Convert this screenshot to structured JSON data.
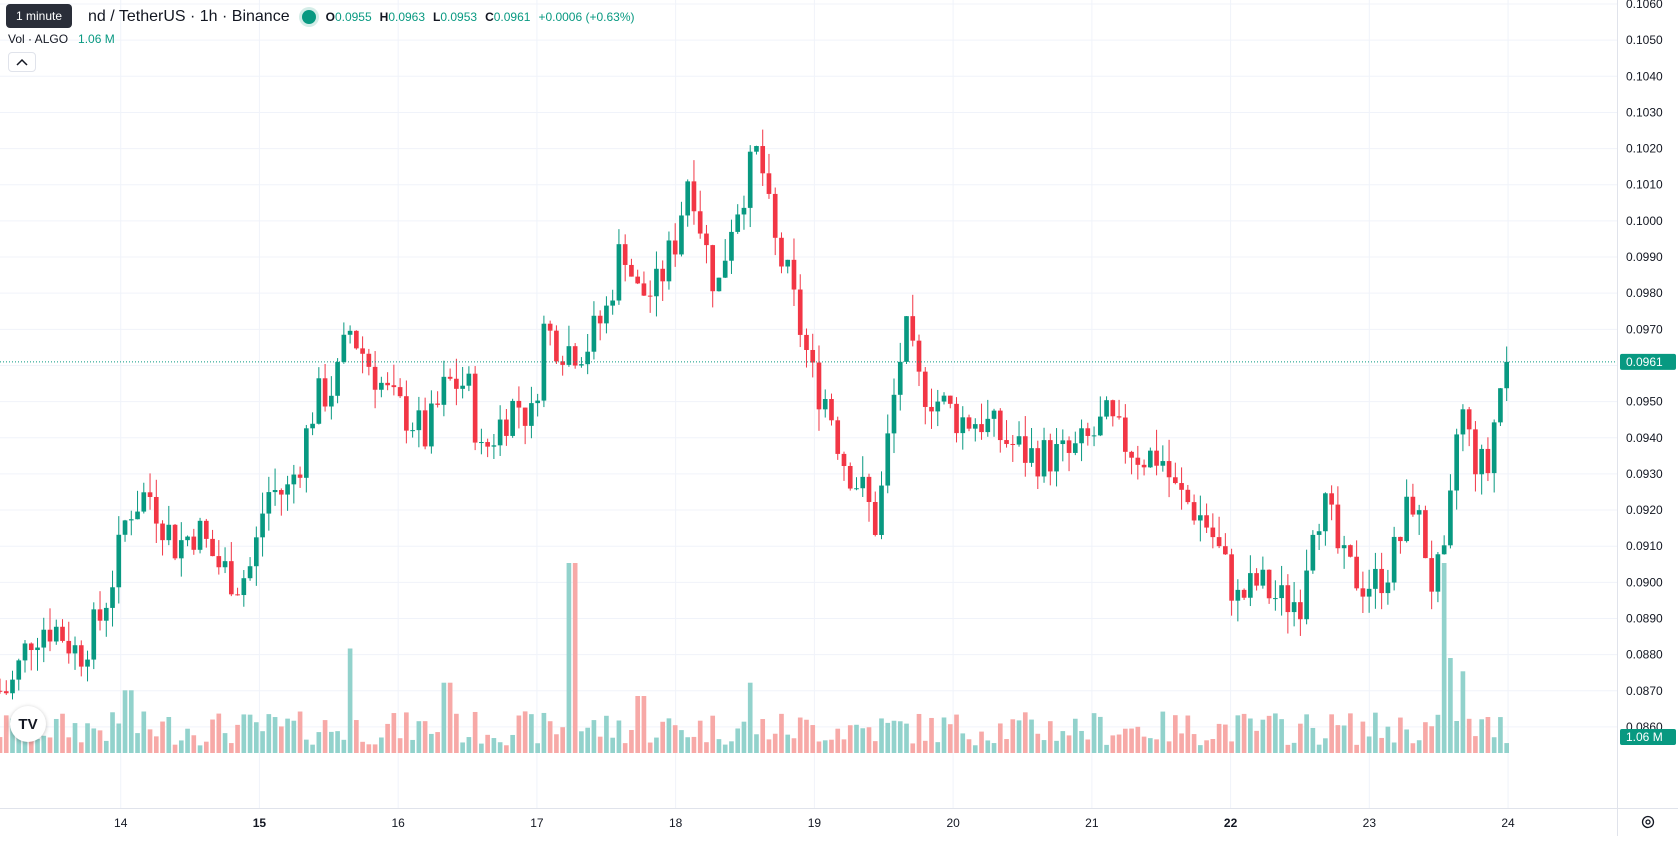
{
  "legend": {
    "interval_tooltip": "1 minute",
    "title": "nd / TetherUS · 1h · Binance",
    "open_label": "O",
    "open": "0.0955",
    "high_label": "H",
    "high": "0.0963",
    "low_label": "L",
    "low": "0.0953",
    "close_label": "C",
    "close": "0.0961",
    "change": "+0.0006 (+0.63%)"
  },
  "volume_legend": {
    "label": "Vol · ALGO",
    "value": "1.06 M"
  },
  "last_price_label": "0.0961",
  "last_volume_label": "1.06 M",
  "icons": {
    "collapse": "chevron-up-icon",
    "logo": "tradingview-logo-icon",
    "settings": "gear-icon"
  },
  "colors": {
    "up": "#089981",
    "down": "#f23645",
    "up_volume": "#92d2cc",
    "down_volume": "#f7a9a7",
    "grid": "#f0f3fa"
  },
  "logo_text": "TV",
  "chart_data": {
    "type": "candlestick",
    "symbol": "ALGO / TetherUS",
    "interval": "1h",
    "exchange": "Binance",
    "price_ticks": [
      "0.0860",
      "0.0870",
      "0.0880",
      "0.0890",
      "0.0900",
      "0.0910",
      "0.0920",
      "0.0930",
      "0.0940",
      "0.0950",
      "0.0960",
      "0.0970",
      "0.0980",
      "0.0990",
      "0.1000",
      "0.1010",
      "0.1020",
      "0.1030",
      "0.1040",
      "0.1050",
      "0.1060"
    ],
    "ylim": [
      0.0855,
      0.106
    ],
    "time_ticks": [
      {
        "label": "14",
        "bold": false
      },
      {
        "label": "15",
        "bold": true
      },
      {
        "label": "16",
        "bold": false
      },
      {
        "label": "17",
        "bold": false
      },
      {
        "label": "18",
        "bold": false
      },
      {
        "label": "19",
        "bold": false
      },
      {
        "label": "20",
        "bold": false
      },
      {
        "label": "21",
        "bold": false
      },
      {
        "label": "22",
        "bold": true
      },
      {
        "label": "23",
        "bold": false
      },
      {
        "label": "24",
        "bold": false
      }
    ],
    "xlim": [
      13.13,
      24.05
    ],
    "last_price": 0.0961,
    "anchors": [
      [
        13.13,
        0.087
      ],
      [
        13.2,
        0.087
      ],
      [
        13.35,
        0.0885
      ],
      [
        13.45,
        0.0888
      ],
      [
        13.55,
        0.0887
      ],
      [
        13.7,
        0.088
      ],
      [
        13.85,
        0.089
      ],
      [
        13.97,
        0.0905
      ],
      [
        14.05,
        0.092
      ],
      [
        14.2,
        0.0925
      ],
      [
        14.4,
        0.091
      ],
      [
        14.55,
        0.0915
      ],
      [
        14.7,
        0.0905
      ],
      [
        14.85,
        0.09
      ],
      [
        14.95,
        0.0905
      ],
      [
        15.05,
        0.0925
      ],
      [
        15.2,
        0.0925
      ],
      [
        15.3,
        0.0935
      ],
      [
        15.4,
        0.095
      ],
      [
        15.55,
        0.0955
      ],
      [
        15.65,
        0.097
      ],
      [
        15.8,
        0.096
      ],
      [
        15.95,
        0.095
      ],
      [
        16.1,
        0.0945
      ],
      [
        16.2,
        0.094
      ],
      [
        16.35,
        0.0955
      ],
      [
        16.5,
        0.0955
      ],
      [
        16.6,
        0.0935
      ],
      [
        16.75,
        0.0945
      ],
      [
        16.85,
        0.095
      ],
      [
        16.97,
        0.0945
      ],
      [
        17.05,
        0.097
      ],
      [
        17.2,
        0.0965
      ],
      [
        17.35,
        0.0965
      ],
      [
        17.5,
        0.0975
      ],
      [
        17.62,
        0.0995
      ],
      [
        17.72,
        0.098
      ],
      [
        17.85,
        0.098
      ],
      [
        18.0,
        0.0995
      ],
      [
        18.1,
        0.1015
      ],
      [
        18.2,
        0.0995
      ],
      [
        18.3,
        0.098
      ],
      [
        18.4,
        0.1
      ],
      [
        18.5,
        0.101
      ],
      [
        18.6,
        0.102
      ],
      [
        18.7,
        0.0995
      ],
      [
        18.8,
        0.0985
      ],
      [
        18.9,
        0.097
      ],
      [
        19.0,
        0.0955
      ],
      [
        19.1,
        0.095
      ],
      [
        19.2,
        0.0935
      ],
      [
        19.35,
        0.0925
      ],
      [
        19.45,
        0.0915
      ],
      [
        19.55,
        0.0945
      ],
      [
        19.65,
        0.097
      ],
      [
        19.75,
        0.0955
      ],
      [
        19.9,
        0.095
      ],
      [
        20.05,
        0.0945
      ],
      [
        20.2,
        0.0945
      ],
      [
        20.35,
        0.094
      ],
      [
        20.55,
        0.0935
      ],
      [
        20.7,
        0.0935
      ],
      [
        20.85,
        0.0935
      ],
      [
        21.0,
        0.094
      ],
      [
        21.1,
        0.0945
      ],
      [
        21.2,
        0.094
      ],
      [
        21.35,
        0.0935
      ],
      [
        21.5,
        0.0935
      ],
      [
        21.6,
        0.0925
      ],
      [
        21.75,
        0.092
      ],
      [
        21.85,
        0.0915
      ],
      [
        21.95,
        0.0905
      ],
      [
        22.05,
        0.0895
      ],
      [
        22.2,
        0.09
      ],
      [
        22.35,
        0.0895
      ],
      [
        22.5,
        0.0895
      ],
      [
        22.6,
        0.092
      ],
      [
        22.7,
        0.092
      ],
      [
        22.8,
        0.0905
      ],
      [
        22.95,
        0.09
      ],
      [
        23.05,
        0.09
      ],
      [
        23.15,
        0.0905
      ],
      [
        23.25,
        0.0915
      ],
      [
        23.3,
        0.0925
      ],
      [
        23.4,
        0.091
      ],
      [
        23.45,
        0.09
      ],
      [
        23.55,
        0.0905
      ],
      [
        23.65,
        0.095
      ],
      [
        23.75,
        0.0935
      ],
      [
        23.85,
        0.093
      ],
      [
        23.92,
        0.095
      ],
      [
        23.99,
        0.0961
      ]
    ],
    "volume_spikes": [
      [
        15.65,
        0.55
      ],
      [
        17.25,
        1.0
      ],
      [
        23.55,
        1.0
      ],
      [
        23.6,
        0.5
      ],
      [
        23.67,
        0.43
      ],
      [
        18.55,
        0.37
      ],
      [
        14.05,
        0.33
      ],
      [
        16.35,
        0.37
      ],
      [
        17.75,
        0.3
      ]
    ]
  }
}
